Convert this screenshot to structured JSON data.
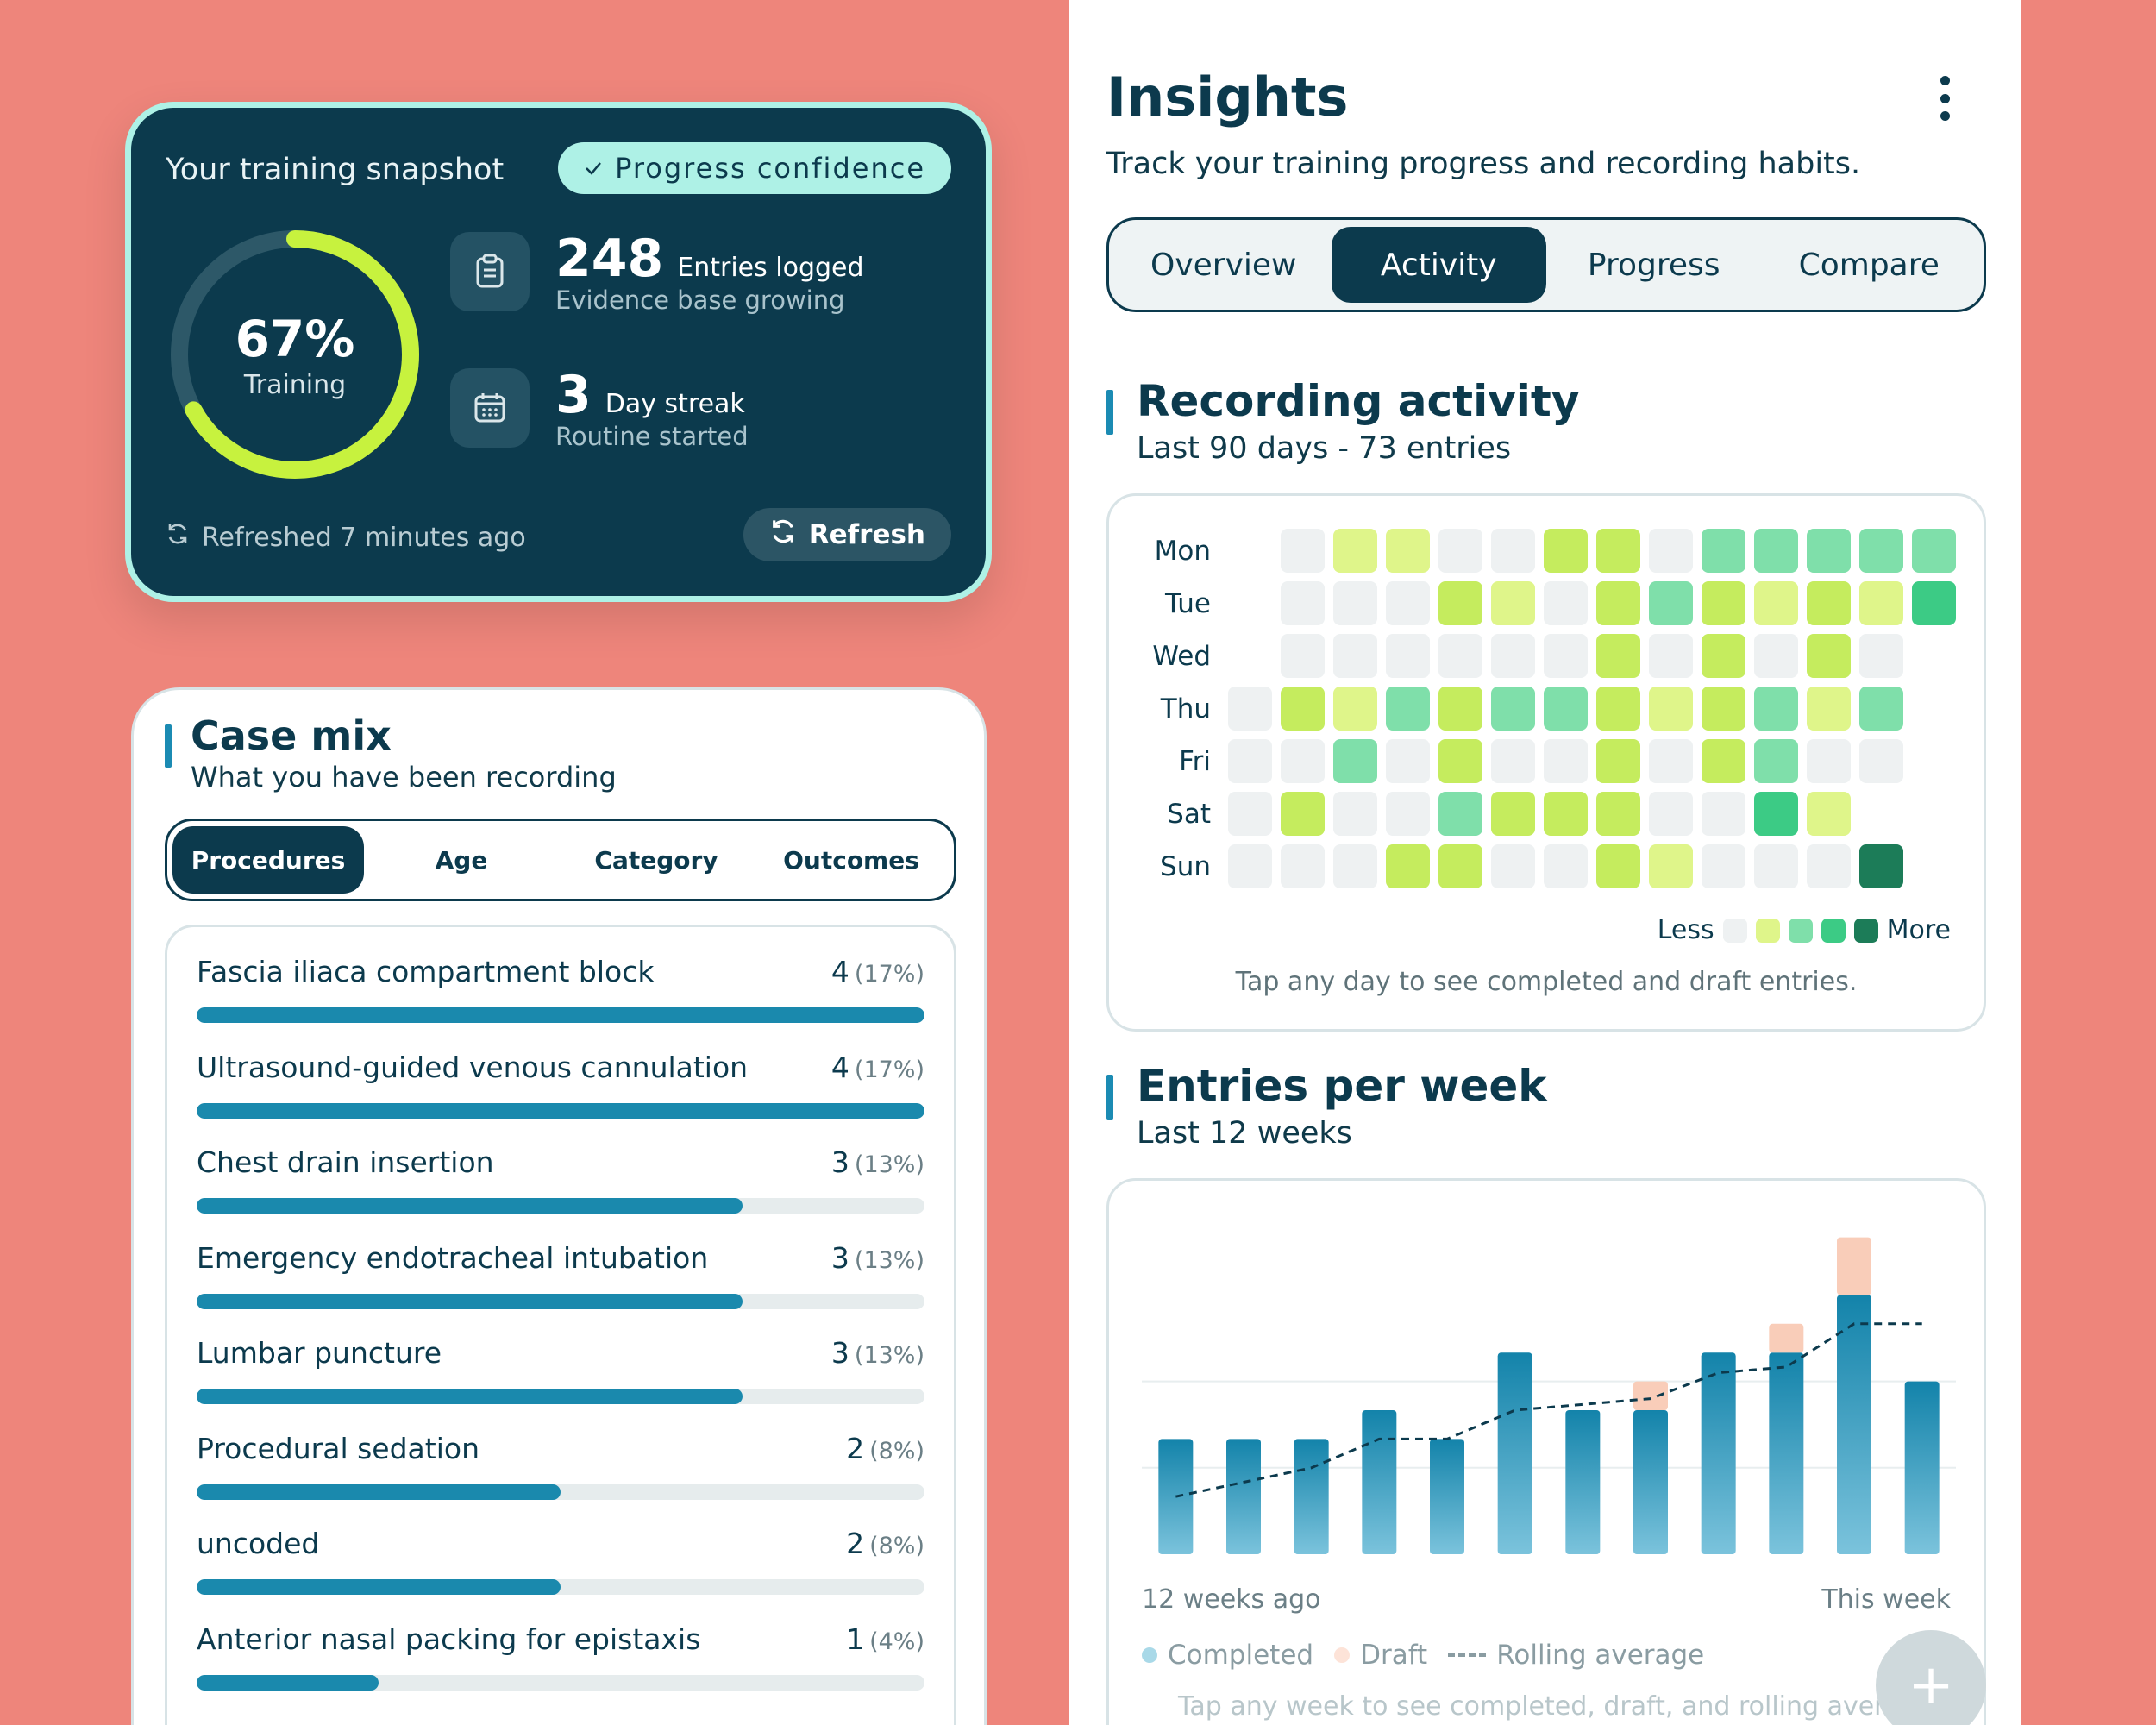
{
  "snapshot": {
    "title": "Your training snapshot",
    "confidence_badge": "Progress confidence",
    "ring_percent_value": 0.67,
    "ring_percent": "67%",
    "ring_label": "Training",
    "entries": {
      "value": "248",
      "unit": "Entries logged",
      "sub": "Evidence base growing",
      "icon": "clipboard-icon"
    },
    "streak": {
      "value": "3",
      "unit": "Day streak",
      "sub": "Routine started",
      "icon": "calendar-icon"
    },
    "refreshed": "Refreshed 7 minutes ago",
    "refresh_label": "Refresh",
    "colors": {
      "card": "#0c3a4d",
      "accent": "#c7f23e",
      "border": "#aef1e6"
    }
  },
  "casemix": {
    "title": "Case mix",
    "subtitle": "What you have been recording",
    "tabs": [
      "Procedures",
      "Age",
      "Category",
      "Outcomes"
    ],
    "active_tab": "Procedures",
    "items": [
      {
        "name": "Fascia iliaca compartment block",
        "count": "4",
        "pct": "(17%)",
        "fill": 1.0
      },
      {
        "name": "Ultrasound-guided venous cannulation",
        "count": "4",
        "pct": "(17%)",
        "fill": 1.0
      },
      {
        "name": "Chest drain insertion",
        "count": "3",
        "pct": "(13%)",
        "fill": 0.75
      },
      {
        "name": "Emergency endotracheal intubation",
        "count": "3",
        "pct": "(13%)",
        "fill": 0.75
      },
      {
        "name": "Lumbar puncture",
        "count": "3",
        "pct": "(13%)",
        "fill": 0.75
      },
      {
        "name": "Procedural sedation",
        "count": "2",
        "pct": "(8%)",
        "fill": 0.5
      },
      {
        "name": "uncoded",
        "count": "2",
        "pct": "(8%)",
        "fill": 0.5
      },
      {
        "name": "Anterior nasal packing for epistaxis",
        "count": "1",
        "pct": "(4%)",
        "fill": 0.25
      }
    ]
  },
  "insights": {
    "title": "Insights",
    "subtitle": "Track your training progress and recording habits.",
    "menu_icon": "more-vertical-icon",
    "tabs": [
      "Overview",
      "Activity",
      "Progress",
      "Compare"
    ],
    "active_tab": "Activity"
  },
  "recording": {
    "title": "Recording activity",
    "subtitle": "Last 90 days - 73 entries",
    "legend_less": "Less",
    "legend_more": "More",
    "hint": "Tap any day to see completed and draft entries.",
    "level_colors": [
      "#eef1f2",
      "#dff58a",
      "#c5ec5e",
      "#7fdfaa",
      "#3ccb85",
      "#1c7c58"
    ]
  },
  "chart_data": [
    {
      "type": "heatmap",
      "rows": [
        "Mon",
        "Tue",
        "Wed",
        "Thu",
        "Fri",
        "Sat",
        "Sun"
      ],
      "columns": 14,
      "values": [
        [
          null,
          0,
          1,
          1,
          0,
          0,
          2,
          2,
          0,
          3,
          3,
          3,
          3,
          3
        ],
        [
          null,
          0,
          0,
          0,
          2,
          1,
          0,
          2,
          3,
          2,
          1,
          2,
          1,
          4
        ],
        [
          null,
          0,
          0,
          0,
          0,
          0,
          0,
          2,
          0,
          2,
          0,
          2,
          0,
          null
        ],
        [
          0,
          2,
          1,
          3,
          2,
          3,
          3,
          2,
          1,
          2,
          3,
          1,
          3,
          null
        ],
        [
          0,
          0,
          3,
          0,
          2,
          0,
          0,
          2,
          0,
          2,
          3,
          0,
          0,
          null
        ],
        [
          0,
          2,
          0,
          0,
          3,
          2,
          2,
          2,
          0,
          0,
          4,
          1,
          null,
          null
        ],
        [
          0,
          0,
          0,
          2,
          2,
          0,
          0,
          2,
          1,
          0,
          0,
          0,
          5,
          null
        ]
      ],
      "legend": [
        "Less",
        "More"
      ]
    },
    {
      "type": "bar",
      "title": "Entries per week",
      "subtitle": "Last 12 weeks",
      "x_start_label": "12 weeks ago",
      "x_end_label": "This week",
      "stacked": true,
      "series": [
        {
          "name": "Completed",
          "values": [
            4,
            4,
            4,
            5,
            4,
            7,
            5,
            5,
            7,
            7,
            9,
            6
          ],
          "color": "#1a89ad"
        },
        {
          "name": "Draft",
          "values": [
            0,
            0,
            0,
            0,
            0,
            0,
            0,
            1,
            0,
            1,
            2,
            0
          ],
          "color": "#f9cdb9"
        },
        {
          "name": "Rolling average",
          "type": "line",
          "values": [
            2,
            2.5,
            3,
            4,
            4,
            5,
            5.2,
            5.4,
            6.3,
            6.5,
            8,
            8
          ]
        }
      ],
      "hint": "Tap any week to see completed, draft, and rolling average"
    }
  ],
  "fab": {
    "icon": "plus-icon",
    "label": "+"
  }
}
